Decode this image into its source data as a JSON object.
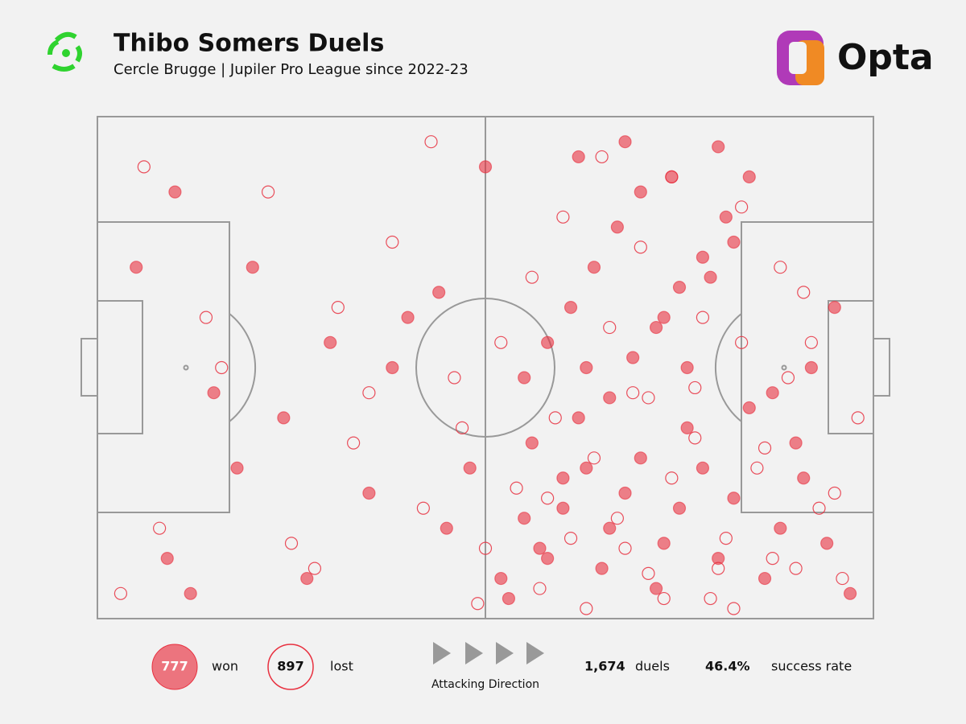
{
  "header": {
    "title": "Thibo Somers Duels",
    "subtitle": "Cercle Brugge | Jupiler Pro League since 2022-23",
    "brand": "Opta"
  },
  "chart_data": {
    "type": "scatter",
    "xlim": [
      0,
      100
    ],
    "ylim": [
      0,
      100
    ],
    "series": [
      {
        "name": "won",
        "color": "#e8303f",
        "x": [
          9,
          12,
          15,
          20,
          24,
          30,
          35,
          40,
          45,
          48,
          52,
          55,
          56,
          58,
          60,
          62,
          63,
          65,
          66,
          68,
          70,
          72,
          73,
          75,
          76,
          78,
          80,
          82,
          84,
          86,
          88,
          90,
          92,
          95,
          97,
          55,
          58,
          61,
          64,
          67,
          70,
          73,
          76,
          79,
          82,
          53,
          57,
          60,
          63,
          66,
          69,
          72,
          75,
          78,
          81,
          84,
          87,
          91,
          94,
          5,
          10,
          18,
          27,
          38,
          44,
          50,
          62,
          68,
          74,
          80
        ],
        "values": [
          12,
          5,
          45,
          70,
          40,
          55,
          25,
          60,
          18,
          30,
          8,
          20,
          35,
          12,
          28,
          40,
          50,
          10,
          18,
          25,
          32,
          6,
          15,
          22,
          38,
          30,
          12,
          24,
          42,
          8,
          18,
          35,
          50,
          62,
          5,
          48,
          55,
          62,
          70,
          78,
          85,
          60,
          50,
          68,
          75,
          4,
          14,
          22,
          30,
          44,
          52,
          58,
          66,
          72,
          80,
          88,
          45,
          28,
          15,
          70,
          85,
          30,
          8,
          50,
          65,
          90,
          92,
          95,
          88,
          94
        ]
      },
      {
        "name": "lost",
        "color": "#e8303f",
        "x": [
          3,
          8,
          14,
          22,
          28,
          33,
          38,
          42,
          46,
          50,
          54,
          57,
          59,
          61,
          64,
          67,
          69,
          71,
          74,
          77,
          79,
          81,
          83,
          85,
          87,
          89,
          91,
          93,
          96,
          98,
          52,
          56,
          60,
          65,
          70,
          74,
          78,
          83,
          88,
          92,
          6,
          16,
          25,
          35,
          43,
          49,
          58,
          63,
          68,
          73,
          77,
          82,
          86,
          90,
          95,
          31,
          47,
          66,
          71,
          80
        ],
        "values": [
          5,
          18,
          60,
          85,
          10,
          35,
          75,
          22,
          48,
          14,
          26,
          6,
          40,
          16,
          32,
          20,
          45,
          9,
          28,
          36,
          4,
          16,
          55,
          30,
          12,
          48,
          65,
          22,
          8,
          40,
          55,
          68,
          80,
          92,
          74,
          88,
          60,
          82,
          70,
          55,
          90,
          50,
          15,
          45,
          95,
          3,
          24,
          2,
          14,
          4,
          46,
          2,
          34,
          10,
          25,
          62,
          38,
          58,
          44,
          10
        ]
      }
    ]
  },
  "footer": {
    "won_count": 777,
    "lost_count": 897,
    "direction": "Attacking Direction",
    "duels": {
      "value": 1674,
      "label": "1,674"
    },
    "duels_label": "duels",
    "success_rate": {
      "value": 46.4,
      "label": "46.4%"
    },
    "success_label": "success rate"
  }
}
